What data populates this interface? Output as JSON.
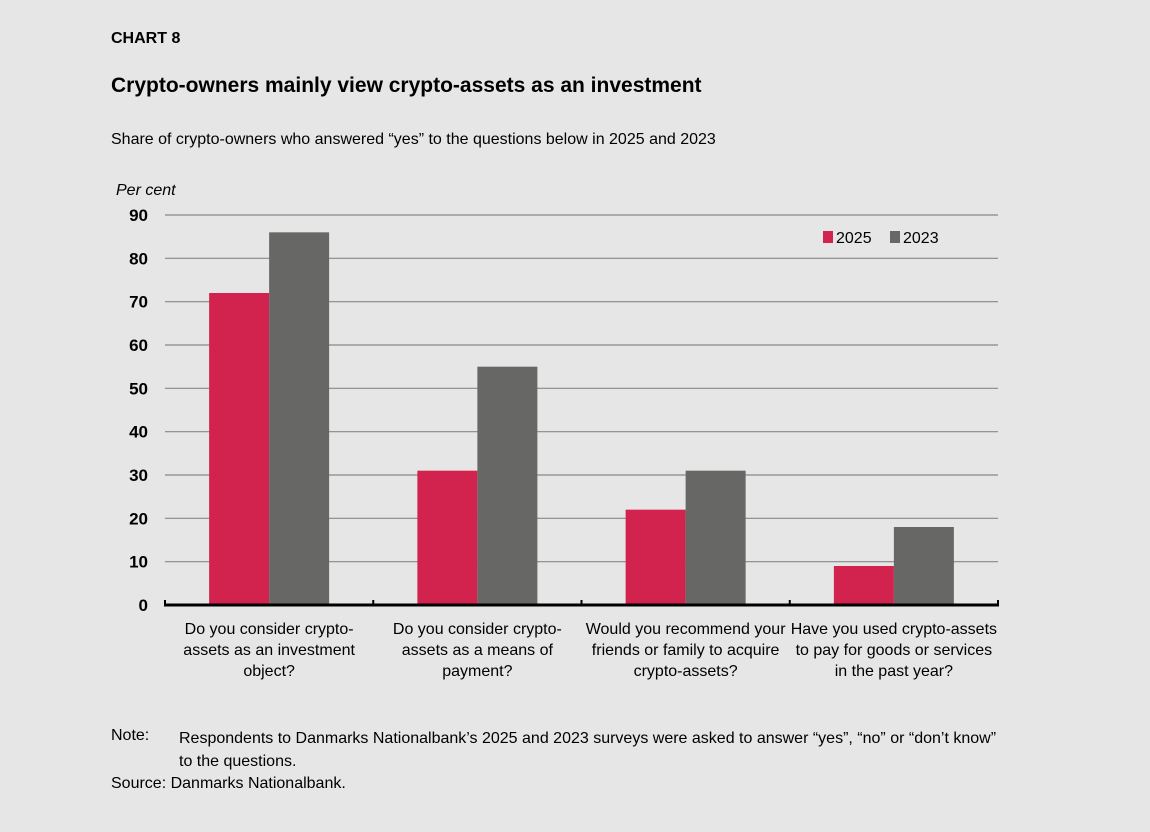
{
  "chart_label": "CHART 8",
  "chart_data": {
    "type": "bar",
    "title": "Crypto-owners mainly view crypto-assets as an investment",
    "subtitle": "Share of crypto-owners who answered “yes” to the questions below in 2025 and 2023",
    "ylabel": "Per cent",
    "xlabel": "",
    "ylim": [
      0,
      90
    ],
    "yticks": [
      0,
      10,
      20,
      30,
      40,
      50,
      60,
      70,
      80,
      90
    ],
    "grid": true,
    "legend_position": "top-right",
    "categories": [
      "Do you consider crypto-assets as an investment object?",
      "Do you consider crypto-assets as a means of payment?",
      "Would you recommend your friends or family to acquire crypto-assets?",
      "Have you used crypto-assets to pay for goods or services in the past year?"
    ],
    "series": [
      {
        "name": "2025",
        "color": "#d2224e",
        "values": [
          72,
          31,
          22,
          9
        ]
      },
      {
        "name": "2023",
        "color": "#676865",
        "values": [
          86,
          55,
          31,
          18
        ]
      }
    ]
  },
  "note_label": "Note:",
  "note": "Respondents to Danmarks Nationalbank’s 2025 and 2023 surveys were asked to answer “yes”, “no” or “don’t know” to the questions.",
  "source": "Source: Danmarks Nationalbank."
}
